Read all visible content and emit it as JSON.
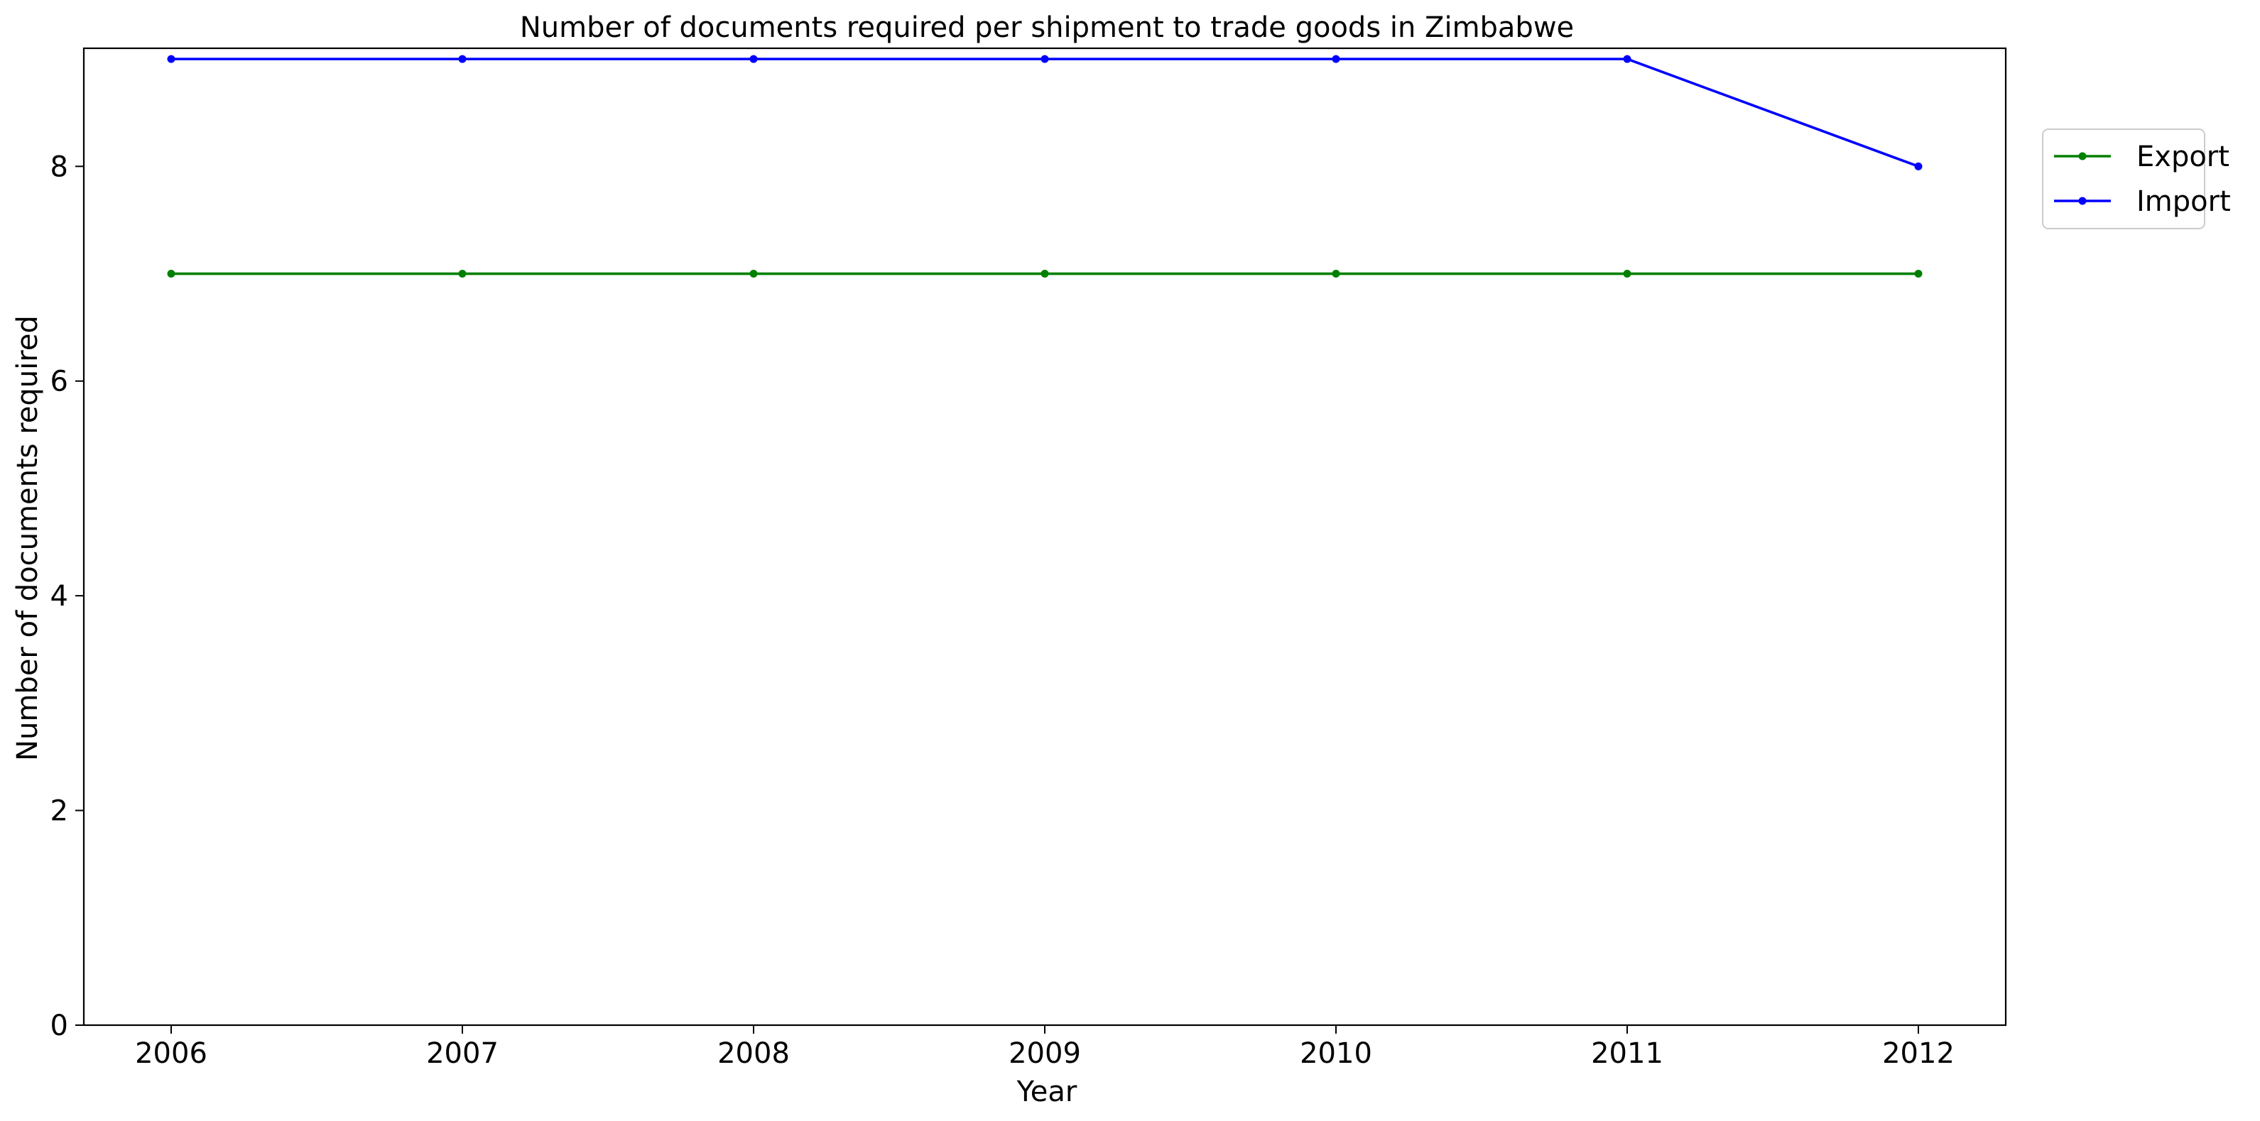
{
  "chart_data": {
    "type": "line",
    "title": "Number of documents required per shipment to trade goods in Zimbabwe",
    "xlabel": "Year",
    "ylabel": "Number of documents required",
    "x": [
      2006,
      2007,
      2008,
      2009,
      2010,
      2011,
      2012
    ],
    "x_tick_labels": [
      "2006",
      "2007",
      "2008",
      "2009",
      "2010",
      "2011",
      "2012"
    ],
    "xlim": [
      2005.7,
      2012.3
    ],
    "ylim": [
      0,
      9.1
    ],
    "y_ticks": [
      0,
      2,
      4,
      6,
      8
    ],
    "y_tick_labels": [
      "0",
      "2",
      "4",
      "6",
      "8"
    ],
    "grid": false,
    "legend_position": "upper-right outside plot",
    "series": [
      {
        "name": "Export",
        "color": "#008000",
        "marker": "circle",
        "values": [
          7,
          7,
          7,
          7,
          7,
          7,
          7
        ]
      },
      {
        "name": "Import",
        "color": "#0000ff",
        "marker": "circle",
        "values": [
          9,
          9,
          9,
          9,
          9,
          9,
          8
        ]
      }
    ]
  }
}
